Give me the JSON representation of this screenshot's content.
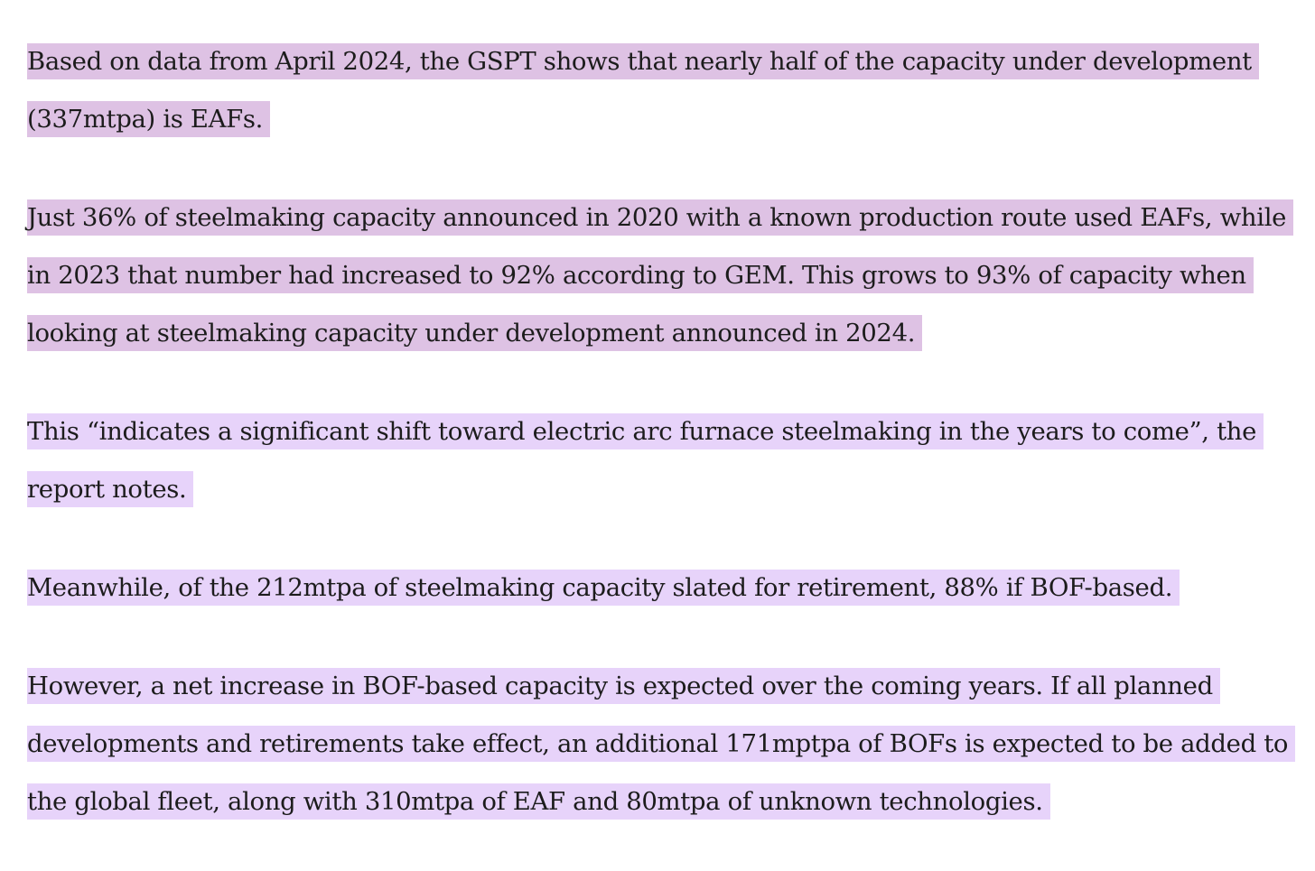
{
  "paragraphs": [
    {
      "text": "Based on data from April 2024, the GSPT shows that nearly half of the capacity under development (337mtpa) is EAFs.",
      "highlight": "dark"
    },
    {
      "text": "Just 36% of steelmaking capacity announced in 2020 with a known production route used EAFs, while in 2023 that number had increased to 92% according to GEM. This grows to 93% of capacity when looking at steelmaking capacity under development announced in 2024.",
      "highlight": "dark"
    },
    {
      "text": "This “indicates a significant shift toward electric arc furnace steelmaking in the years to come”, the report notes.",
      "highlight": "light"
    },
    {
      "text": "Meanwhile, of the 212mtpa of steelmaking capacity slated for retirement, 88% if BOF-based.",
      "highlight": "light"
    },
    {
      "text": "However, a net increase in BOF-based capacity is expected over the coming years. If all planned developments and retirements take effect, an additional 171mptpa of BOFs is expected to be added to the global fleet, along with 310mtpa of EAF and 80mtpa of unknown technologies.",
      "highlight": "light"
    }
  ],
  "colors": {
    "highlight_dark": "#dec2e4",
    "highlight_light": "#e7d3fa",
    "text": "#1c1c1c"
  }
}
